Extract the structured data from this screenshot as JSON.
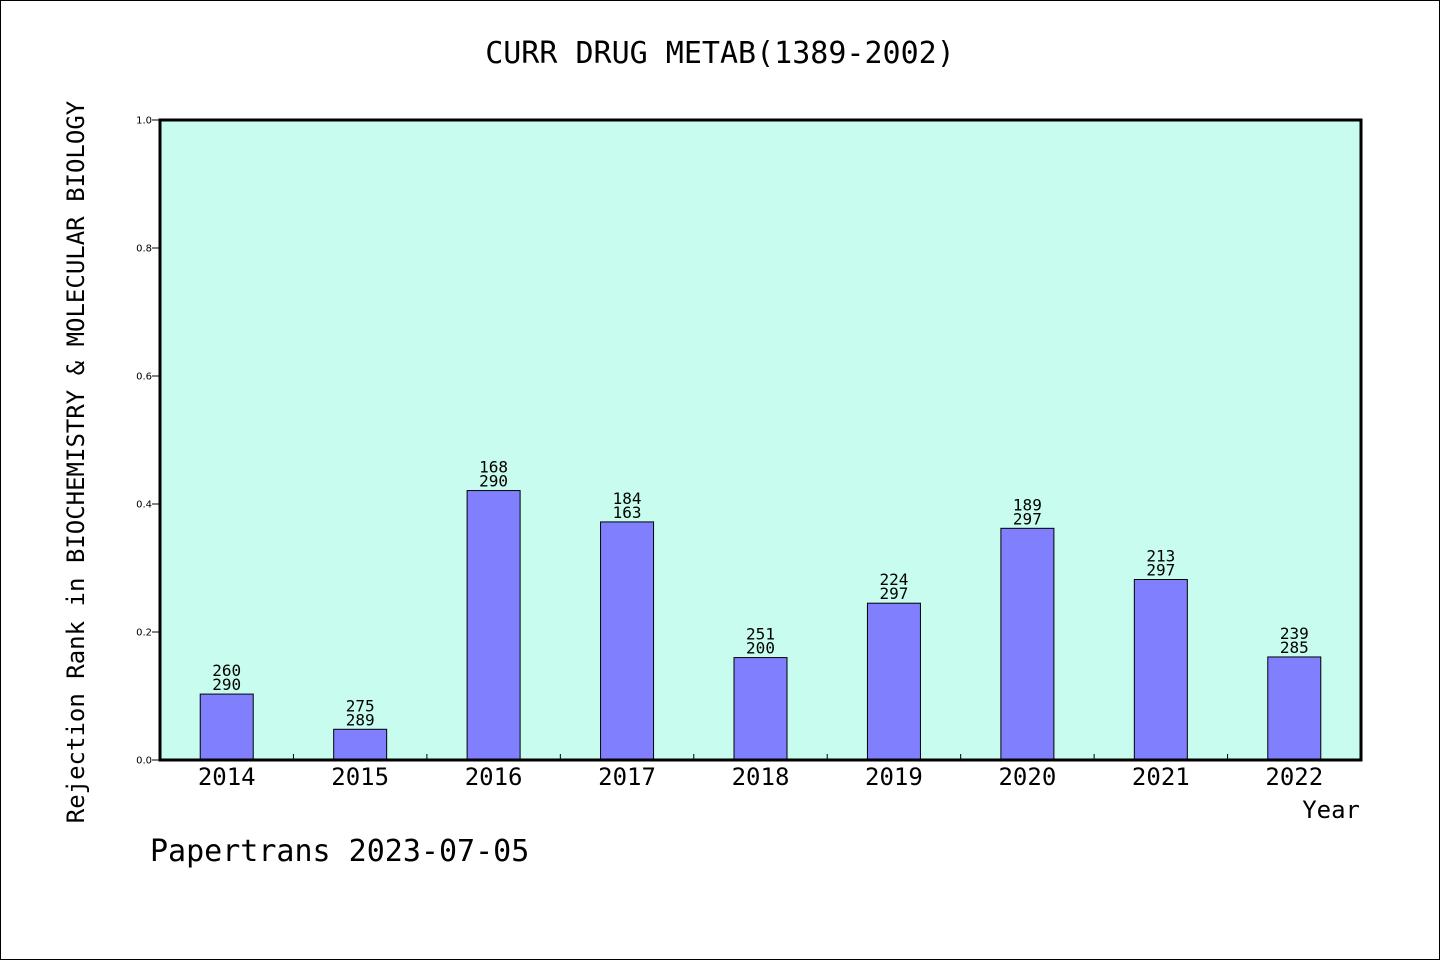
{
  "chart_data": {
    "type": "bar",
    "title": "CURR DRUG METAB(1389-2002)",
    "xlabel": "Year",
    "ylabel": "Rejection Rank in BIOCHEMISTRY & MOLECULAR BIOLOGY",
    "ylim": [
      0,
      1.0
    ],
    "yticks": [
      "0.0",
      "0.2",
      "0.4",
      "0.6",
      "0.8",
      "1.0"
    ],
    "ytick_values": [
      0,
      0.2,
      0.4,
      0.6,
      0.8,
      1.0
    ],
    "categories": [
      "2014",
      "2015",
      "2016",
      "2017",
      "2018",
      "2019",
      "2020",
      "2021",
      "2022"
    ],
    "values": [
      0.103,
      0.048,
      0.421,
      0.372,
      0.16,
      0.245,
      0.362,
      0.282,
      0.161
    ],
    "bar_labels_top": [
      "260",
      "275",
      "168",
      "184",
      "251",
      "224",
      "189",
      "213",
      "239"
    ],
    "bar_labels_bottom": [
      "290",
      "289",
      "290",
      "163",
      "200",
      "297",
      "297",
      "297",
      "285"
    ],
    "colors": {
      "plot_background": "#c8fcee",
      "bar_fill": "#8080ff",
      "bar_stroke": "#000000"
    },
    "grid": false
  },
  "footer": {
    "text": "Papertrans 2023-07-05"
  }
}
